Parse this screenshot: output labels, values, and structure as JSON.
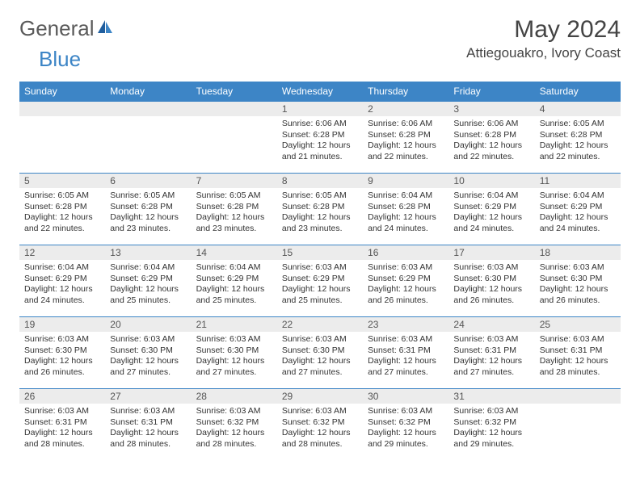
{
  "logo": {
    "text_gray": "General",
    "text_blue": "Blue"
  },
  "title": "May 2024",
  "location": "Attiegouakro, Ivory Coast",
  "colors": {
    "header_bg": "#3d85c6",
    "header_text": "#ffffff",
    "date_bar_bg": "#ececec",
    "date_text": "#555555",
    "body_text": "#333333",
    "border": "#3d85c6"
  },
  "day_names": [
    "Sunday",
    "Monday",
    "Tuesday",
    "Wednesday",
    "Thursday",
    "Friday",
    "Saturday"
  ],
  "weeks": [
    [
      {
        "date": "",
        "sunrise": "",
        "sunset": "",
        "daylight": ""
      },
      {
        "date": "",
        "sunrise": "",
        "sunset": "",
        "daylight": ""
      },
      {
        "date": "",
        "sunrise": "",
        "sunset": "",
        "daylight": ""
      },
      {
        "date": "1",
        "sunrise": "Sunrise: 6:06 AM",
        "sunset": "Sunset: 6:28 PM",
        "daylight": "Daylight: 12 hours and 21 minutes."
      },
      {
        "date": "2",
        "sunrise": "Sunrise: 6:06 AM",
        "sunset": "Sunset: 6:28 PM",
        "daylight": "Daylight: 12 hours and 22 minutes."
      },
      {
        "date": "3",
        "sunrise": "Sunrise: 6:06 AM",
        "sunset": "Sunset: 6:28 PM",
        "daylight": "Daylight: 12 hours and 22 minutes."
      },
      {
        "date": "4",
        "sunrise": "Sunrise: 6:05 AM",
        "sunset": "Sunset: 6:28 PM",
        "daylight": "Daylight: 12 hours and 22 minutes."
      }
    ],
    [
      {
        "date": "5",
        "sunrise": "Sunrise: 6:05 AM",
        "sunset": "Sunset: 6:28 PM",
        "daylight": "Daylight: 12 hours and 22 minutes."
      },
      {
        "date": "6",
        "sunrise": "Sunrise: 6:05 AM",
        "sunset": "Sunset: 6:28 PM",
        "daylight": "Daylight: 12 hours and 23 minutes."
      },
      {
        "date": "7",
        "sunrise": "Sunrise: 6:05 AM",
        "sunset": "Sunset: 6:28 PM",
        "daylight": "Daylight: 12 hours and 23 minutes."
      },
      {
        "date": "8",
        "sunrise": "Sunrise: 6:05 AM",
        "sunset": "Sunset: 6:28 PM",
        "daylight": "Daylight: 12 hours and 23 minutes."
      },
      {
        "date": "9",
        "sunrise": "Sunrise: 6:04 AM",
        "sunset": "Sunset: 6:28 PM",
        "daylight": "Daylight: 12 hours and 24 minutes."
      },
      {
        "date": "10",
        "sunrise": "Sunrise: 6:04 AM",
        "sunset": "Sunset: 6:29 PM",
        "daylight": "Daylight: 12 hours and 24 minutes."
      },
      {
        "date": "11",
        "sunrise": "Sunrise: 6:04 AM",
        "sunset": "Sunset: 6:29 PM",
        "daylight": "Daylight: 12 hours and 24 minutes."
      }
    ],
    [
      {
        "date": "12",
        "sunrise": "Sunrise: 6:04 AM",
        "sunset": "Sunset: 6:29 PM",
        "daylight": "Daylight: 12 hours and 24 minutes."
      },
      {
        "date": "13",
        "sunrise": "Sunrise: 6:04 AM",
        "sunset": "Sunset: 6:29 PM",
        "daylight": "Daylight: 12 hours and 25 minutes."
      },
      {
        "date": "14",
        "sunrise": "Sunrise: 6:04 AM",
        "sunset": "Sunset: 6:29 PM",
        "daylight": "Daylight: 12 hours and 25 minutes."
      },
      {
        "date": "15",
        "sunrise": "Sunrise: 6:03 AM",
        "sunset": "Sunset: 6:29 PM",
        "daylight": "Daylight: 12 hours and 25 minutes."
      },
      {
        "date": "16",
        "sunrise": "Sunrise: 6:03 AM",
        "sunset": "Sunset: 6:29 PM",
        "daylight": "Daylight: 12 hours and 26 minutes."
      },
      {
        "date": "17",
        "sunrise": "Sunrise: 6:03 AM",
        "sunset": "Sunset: 6:30 PM",
        "daylight": "Daylight: 12 hours and 26 minutes."
      },
      {
        "date": "18",
        "sunrise": "Sunrise: 6:03 AM",
        "sunset": "Sunset: 6:30 PM",
        "daylight": "Daylight: 12 hours and 26 minutes."
      }
    ],
    [
      {
        "date": "19",
        "sunrise": "Sunrise: 6:03 AM",
        "sunset": "Sunset: 6:30 PM",
        "daylight": "Daylight: 12 hours and 26 minutes."
      },
      {
        "date": "20",
        "sunrise": "Sunrise: 6:03 AM",
        "sunset": "Sunset: 6:30 PM",
        "daylight": "Daylight: 12 hours and 27 minutes."
      },
      {
        "date": "21",
        "sunrise": "Sunrise: 6:03 AM",
        "sunset": "Sunset: 6:30 PM",
        "daylight": "Daylight: 12 hours and 27 minutes."
      },
      {
        "date": "22",
        "sunrise": "Sunrise: 6:03 AM",
        "sunset": "Sunset: 6:30 PM",
        "daylight": "Daylight: 12 hours and 27 minutes."
      },
      {
        "date": "23",
        "sunrise": "Sunrise: 6:03 AM",
        "sunset": "Sunset: 6:31 PM",
        "daylight": "Daylight: 12 hours and 27 minutes."
      },
      {
        "date": "24",
        "sunrise": "Sunrise: 6:03 AM",
        "sunset": "Sunset: 6:31 PM",
        "daylight": "Daylight: 12 hours and 27 minutes."
      },
      {
        "date": "25",
        "sunrise": "Sunrise: 6:03 AM",
        "sunset": "Sunset: 6:31 PM",
        "daylight": "Daylight: 12 hours and 28 minutes."
      }
    ],
    [
      {
        "date": "26",
        "sunrise": "Sunrise: 6:03 AM",
        "sunset": "Sunset: 6:31 PM",
        "daylight": "Daylight: 12 hours and 28 minutes."
      },
      {
        "date": "27",
        "sunrise": "Sunrise: 6:03 AM",
        "sunset": "Sunset: 6:31 PM",
        "daylight": "Daylight: 12 hours and 28 minutes."
      },
      {
        "date": "28",
        "sunrise": "Sunrise: 6:03 AM",
        "sunset": "Sunset: 6:32 PM",
        "daylight": "Daylight: 12 hours and 28 minutes."
      },
      {
        "date": "29",
        "sunrise": "Sunrise: 6:03 AM",
        "sunset": "Sunset: 6:32 PM",
        "daylight": "Daylight: 12 hours and 28 minutes."
      },
      {
        "date": "30",
        "sunrise": "Sunrise: 6:03 AM",
        "sunset": "Sunset: 6:32 PM",
        "daylight": "Daylight: 12 hours and 29 minutes."
      },
      {
        "date": "31",
        "sunrise": "Sunrise: 6:03 AM",
        "sunset": "Sunset: 6:32 PM",
        "daylight": "Daylight: 12 hours and 29 minutes."
      },
      {
        "date": "",
        "sunrise": "",
        "sunset": "",
        "daylight": ""
      }
    ]
  ]
}
